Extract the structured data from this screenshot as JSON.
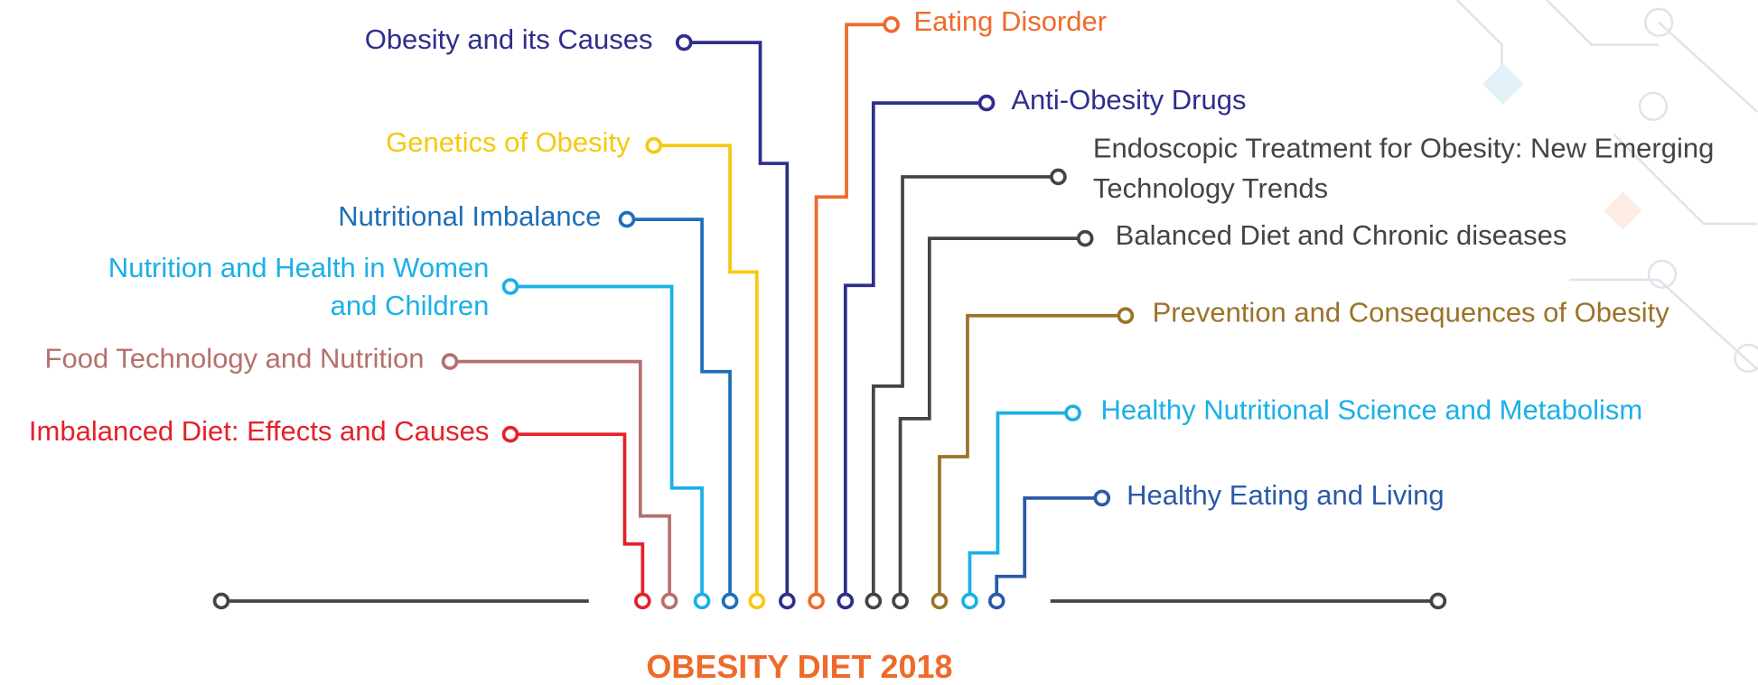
{
  "title": "OBESITY DIET 2018",
  "topics": [
    {
      "label": [
        "Imbalanced Diet: Effects and Causes"
      ],
      "color": "#e3212b"
    },
    {
      "label": [
        "Food Technology and Nutrition"
      ],
      "color": "#b5706b"
    },
    {
      "label": [
        "Nutrition and Health in Women",
        "and Children"
      ],
      "color": "#1ab0e8"
    },
    {
      "label": [
        "Nutritional Imbalance"
      ],
      "color": "#1f6fb8"
    },
    {
      "label": [
        "Genetics of Obesity"
      ],
      "color": "#f7c80f"
    },
    {
      "label": [
        "Obesity and its Causes"
      ],
      "color": "#2e2e8c"
    },
    {
      "label": [
        "Eating Disorder"
      ],
      "color": "#ef6a2a"
    },
    {
      "label": [
        "Anti-Obesity Drugs"
      ],
      "color": "#2e2e8c"
    },
    {
      "label": [
        "Endoscopic Treatment for Obesity: New Emerging",
        "Technology Trends"
      ],
      "color": "#444444"
    },
    {
      "label": [
        "Balanced Diet and Chronic diseases"
      ],
      "color": "#444444"
    },
    {
      "label": [
        "Prevention and Consequences of Obesity"
      ],
      "color": "#9a7328"
    },
    {
      "label": [
        "Healthy Nutritional Science and Metabolism"
      ],
      "color": "#1ab0e8"
    },
    {
      "label": [
        "Healthy Eating and Living"
      ],
      "color": "#2a5aa8"
    }
  ]
}
